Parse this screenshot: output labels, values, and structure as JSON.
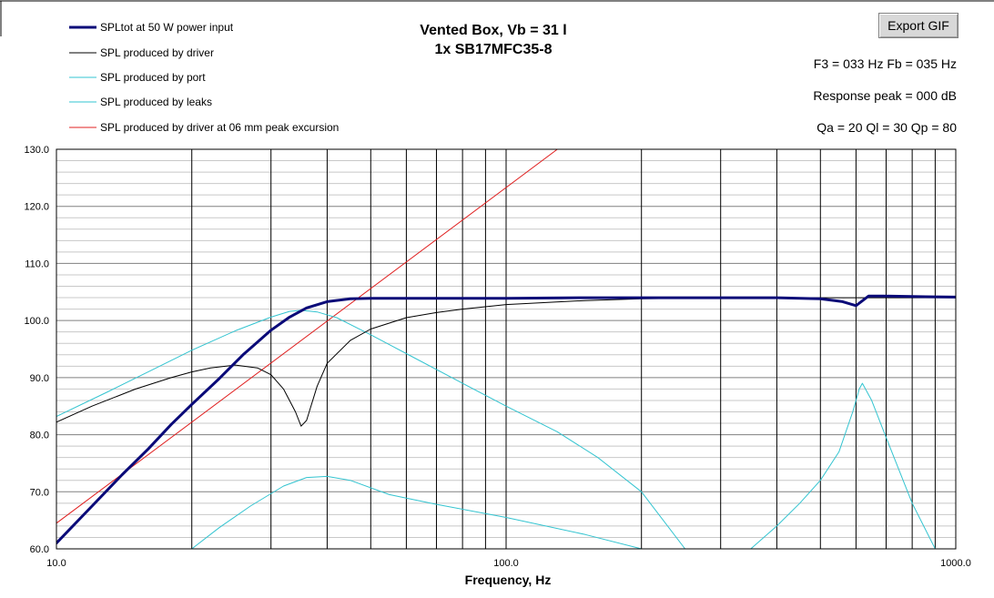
{
  "ui": {
    "export_button_label": "Export GIF"
  },
  "info": {
    "line1": "F3 = 033 Hz  Fb = 035 Hz",
    "line2": "Response peak = 000 dB",
    "line3": "Qa = 20  Ql = 30  Qp = 80"
  },
  "colors": {
    "sp_total": "#0a0a78",
    "driver": "#000000",
    "port": "#33c4d0",
    "leaks": "#33c4d0",
    "excursion": "#e02020",
    "grid": "#a0a0a0"
  },
  "chart_data": {
    "type": "line",
    "title": "Vented Box, Vb = 31 l",
    "subtitle": "1x SB17MFC35-8",
    "xlabel": "Frequency,  Hz",
    "ylabel": "",
    "x_scale": "log",
    "xlim": [
      10,
      1000
    ],
    "ylim": [
      60,
      130
    ],
    "x_ticks": [
      "10.0",
      "100.0",
      "1000.0"
    ],
    "y_ticks": [
      "60.0",
      "70.0",
      "80.0",
      "90.0",
      "100.0",
      "110.0",
      "120.0",
      "130.0"
    ],
    "grid": true,
    "legend_position": "top-left",
    "series": [
      {
        "name": "SPLtot at 50 W power input",
        "color_key": "sp_total",
        "x": [
          10,
          12,
          14,
          16,
          18,
          20,
          23,
          26,
          30,
          33,
          36,
          40,
          45,
          50,
          60,
          80,
          100,
          150,
          200,
          300,
          400,
          500,
          560,
          600,
          640,
          700,
          800,
          1000
        ],
        "y": [
          61.0,
          67.5,
          73.0,
          77.5,
          81.8,
          85.3,
          89.8,
          94.0,
          98.3,
          100.6,
          102.2,
          103.3,
          103.8,
          103.9,
          103.9,
          103.9,
          103.9,
          104.0,
          104.0,
          104.0,
          104.0,
          103.8,
          103.3,
          102.6,
          104.3,
          104.3,
          104.2,
          104.1
        ]
      },
      {
        "name": "SPL produced by driver",
        "color_key": "driver",
        "x": [
          10,
          12,
          15,
          18,
          20,
          22,
          25,
          28,
          30,
          32,
          34,
          35,
          36,
          38,
          40,
          45,
          50,
          60,
          70,
          80,
          100,
          150,
          200,
          300,
          500,
          1000
        ],
        "y": [
          82.2,
          85.0,
          88.0,
          90.0,
          91.0,
          91.7,
          92.2,
          91.7,
          90.5,
          88.0,
          84.0,
          81.5,
          82.5,
          88.5,
          92.5,
          96.5,
          98.5,
          100.5,
          101.4,
          102.0,
          102.8,
          103.5,
          103.8,
          104.0,
          104.0,
          104.0
        ]
      },
      {
        "name": "SPL produced by port",
        "color_key": "port",
        "x": [
          10,
          13,
          16,
          20,
          25,
          30,
          33,
          35,
          38,
          42,
          50,
          60,
          80,
          100,
          130,
          160,
          200,
          250
        ],
        "y": [
          83.2,
          87.5,
          91.0,
          94.8,
          98.2,
          100.6,
          101.6,
          101.8,
          101.5,
          100.5,
          97.5,
          94.2,
          89.0,
          85.0,
          80.5,
          76.0,
          70.0,
          60.0
        ]
      },
      {
        "name": "SPL produced by leaks",
        "color_key": "leaks",
        "x": [
          20,
          23,
          27,
          32,
          36,
          40,
          45,
          55,
          70,
          100,
          150,
          200,
          200,
          350,
          400,
          450,
          500,
          550,
          590,
          610,
          620,
          650,
          700,
          800,
          900
        ],
        "y": [
          60.0,
          63.7,
          67.5,
          71.0,
          72.5,
          72.7,
          72.0,
          69.5,
          67.8,
          65.5,
          62.5,
          60.0,
          null,
          60.0,
          64.0,
          68.0,
          72.0,
          77.0,
          84.0,
          88.0,
          89.0,
          86.0,
          79.5,
          68.0,
          60.0
        ]
      },
      {
        "name": "SPL produced by driver at 06 mm peak excursion",
        "color_key": "excursion",
        "x": [
          10,
          130
        ],
        "y": [
          64.5,
          130.0
        ]
      }
    ]
  }
}
